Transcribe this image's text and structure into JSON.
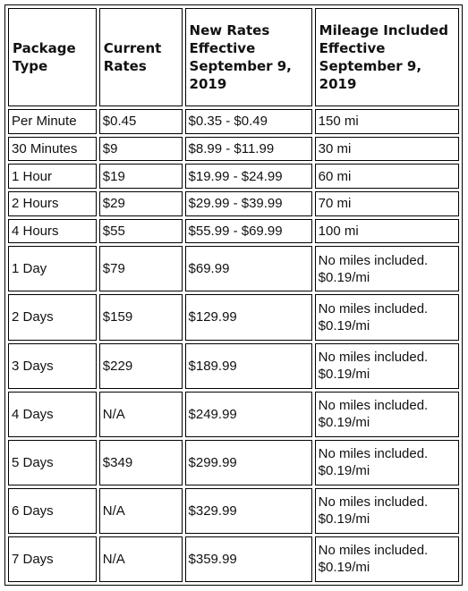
{
  "headers": [
    "Package Type",
    "Current Rates",
    "New Rates Effective September 9, 2019",
    "Mileage Included Effective September 9, 2019"
  ],
  "rows": [
    {
      "package": "Per Minute",
      "current": "$0.45",
      "new_rate": "$0.35 - $0.49",
      "mileage": "150 mi"
    },
    {
      "package": "30 Minutes",
      "current": "$9",
      "new_rate": "$8.99 - $11.99",
      "mileage": "30 mi"
    },
    {
      "package": "1 Hour",
      "current": "$19",
      "new_rate": "$19.99 - $24.99",
      "mileage": "60 mi"
    },
    {
      "package": "2 Hours",
      "current": "$29",
      "new_rate": "$29.99 - $39.99",
      "mileage": "70 mi"
    },
    {
      "package": "4 Hours",
      "current": "$55",
      "new_rate": "$55.99 - $69.99",
      "mileage": "100 mi"
    },
    {
      "package": "1 Day",
      "current": "$79",
      "new_rate": "$69.99",
      "mileage_line1": "No miles included.",
      "mileage_line2": "$0.19/mi"
    },
    {
      "package": "2 Days",
      "current": "$159",
      "new_rate": "$129.99",
      "mileage_line1": "No miles included.",
      "mileage_line2": "$0.19/mi"
    },
    {
      "package": "3 Days",
      "current": "$229",
      "new_rate": "$189.99",
      "mileage_line1": "No miles included.",
      "mileage_line2": "$0.19/mi"
    },
    {
      "package": "4 Days",
      "current": "N/A",
      "new_rate": "$249.99",
      "mileage_line1": "No miles included.",
      "mileage_line2": "$0.19/mi"
    },
    {
      "package": "5 Days",
      "current": "$349",
      "new_rate": "$299.99",
      "mileage_line1": "No miles included.",
      "mileage_line2": "$0.19/mi"
    },
    {
      "package": "6 Days",
      "current": "N/A",
      "new_rate": "$329.99",
      "mileage_line1": "No miles included.",
      "mileage_line2": "$0.19/mi"
    },
    {
      "package": "7 Days",
      "current": "N/A",
      "new_rate": "$359.99",
      "mileage_line1": "No miles included.",
      "mileage_line2": "$0.19/mi"
    }
  ]
}
